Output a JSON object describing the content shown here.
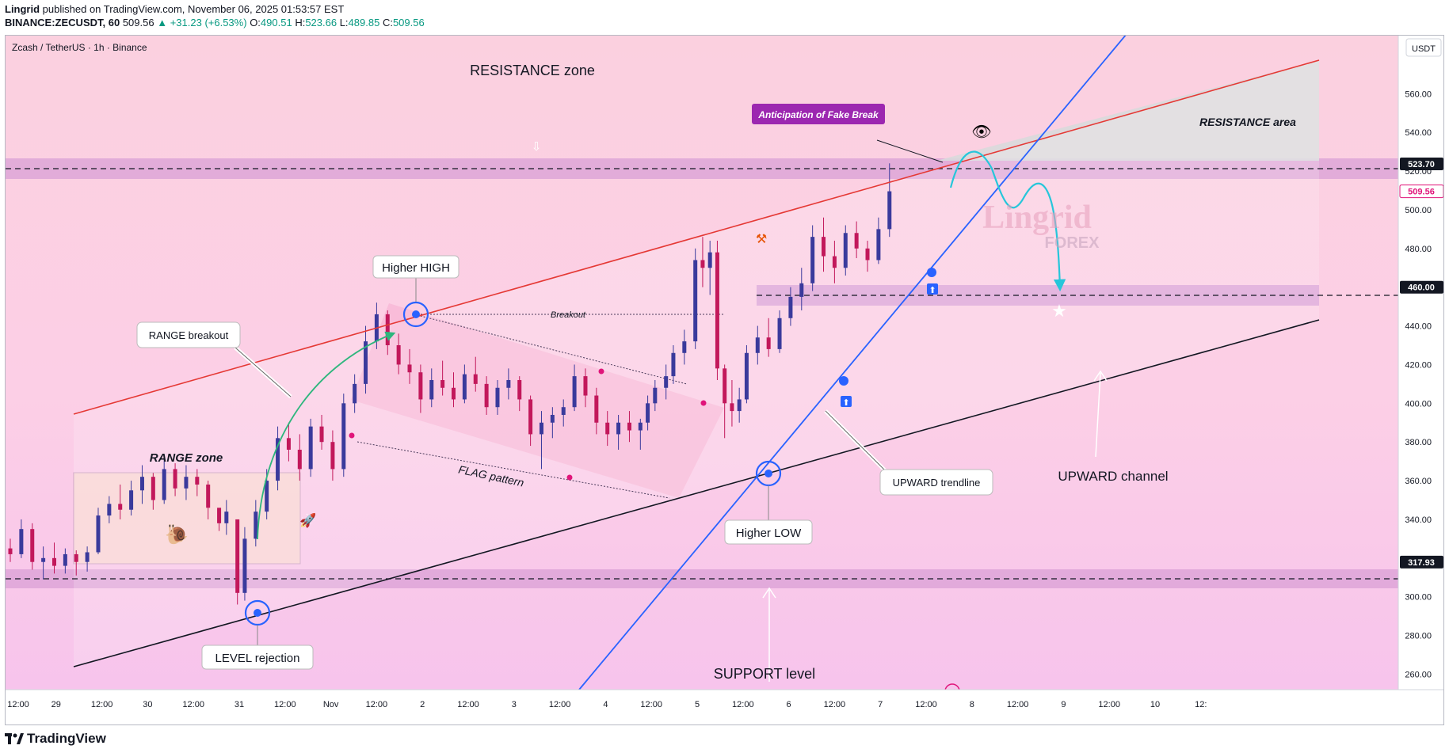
{
  "header": {
    "author": "Lingrid",
    "published_text": "published on TradingView.com, November 06, 2025 01:53:57 EST",
    "symbol": "BINANCE:ZECUSDT, 60",
    "last": "509.56",
    "change": "+31.23 (+6.53%)",
    "o_label": "O:",
    "o": "490.51",
    "h_label": "H:",
    "h": "523.66",
    "l_label": "L:",
    "l": "489.85",
    "c_label": "C:",
    "c": "509.56"
  },
  "footer": {
    "brand": "TradingView"
  },
  "colors": {
    "up": "#089981",
    "candle_body": "#3a3a9c",
    "candle_down": "#c2185b",
    "resistance_line": "#e53935",
    "trend_line": "#2962ff",
    "support_line": "#131722",
    "zone": "#d9a0d6",
    "projection": "#33d6e0"
  },
  "chart_data": {
    "type": "candlestick",
    "title": "Zcash / TetherUS · 1h · Binance",
    "currency": "USDT",
    "ylim": [
      252,
      590
    ],
    "y_ticks": [
      "560.00",
      "540.00",
      "520.00",
      "500.00",
      "480.00",
      "440.00",
      "420.00",
      "400.00",
      "380.00",
      "360.00",
      "340.00",
      "300.00",
      "280.00",
      "260.00"
    ],
    "y_tick_values": [
      560,
      540,
      520,
      500,
      480,
      440,
      420,
      400,
      380,
      360,
      340,
      300,
      280,
      260
    ],
    "price_tags": [
      {
        "label": "523.70",
        "value": 523.7,
        "style": "dark"
      },
      {
        "label": "509.56",
        "value": 509.56,
        "style": "red"
      },
      {
        "label": "460.00",
        "value": 460.0,
        "style": "dark"
      },
      {
        "label": "317.93",
        "value": 317.93,
        "style": "dark"
      }
    ],
    "x_labels": [
      "12:00",
      "29",
      "12:00",
      "30",
      "12:00",
      "31",
      "12:00",
      "Nov",
      "12:00",
      "2",
      "12:00",
      "3",
      "12:00",
      "4",
      "12:00",
      "5",
      "12:00",
      "6",
      "12:00",
      "7",
      "12:00",
      "8",
      "12:00",
      "9",
      "12:00",
      "10",
      "12:"
    ],
    "x_label_days": [
      0,
      0.5,
      1,
      1.5,
      2,
      2.5,
      3,
      3.5,
      4,
      4.5,
      5,
      5.5,
      6,
      6.5,
      7,
      7.5,
      8,
      8.5,
      9,
      9.5,
      10,
      10.5,
      11,
      11.5,
      12,
      12.5,
      13
    ],
    "ohlc_days": [
      [
        0.0,
        325,
        330,
        318,
        322
      ],
      [
        0.12,
        322,
        340,
        320,
        335
      ],
      [
        0.24,
        335,
        338,
        314,
        318
      ],
      [
        0.36,
        318,
        326,
        309,
        320
      ],
      [
        0.48,
        320,
        328,
        312,
        316
      ],
      [
        0.6,
        316,
        325,
        312,
        322
      ],
      [
        0.72,
        322,
        324,
        311,
        318
      ],
      [
        0.84,
        318,
        326,
        313,
        323
      ],
      [
        0.96,
        323,
        346,
        322,
        342
      ],
      [
        1.08,
        342,
        352,
        338,
        348
      ],
      [
        1.2,
        348,
        358,
        340,
        345
      ],
      [
        1.32,
        345,
        360,
        342,
        355
      ],
      [
        1.44,
        355,
        368,
        348,
        362
      ],
      [
        1.56,
        362,
        364,
        345,
        350
      ],
      [
        1.68,
        350,
        372,
        348,
        366
      ],
      [
        1.8,
        366,
        369,
        352,
        356
      ],
      [
        1.92,
        356,
        368,
        350,
        362
      ],
      [
        2.04,
        362,
        366,
        352,
        358
      ],
      [
        2.16,
        358,
        360,
        340,
        346
      ],
      [
        2.28,
        346,
        344,
        334,
        338
      ],
      [
        2.36,
        338,
        350,
        332,
        344
      ],
      [
        2.48,
        340,
        332,
        296,
        302
      ],
      [
        2.56,
        302,
        336,
        298,
        330
      ],
      [
        2.68,
        330,
        350,
        326,
        344
      ],
      [
        2.8,
        344,
        366,
        340,
        360
      ],
      [
        2.92,
        360,
        388,
        355,
        382
      ],
      [
        3.04,
        382,
        390,
        370,
        376
      ],
      [
        3.16,
        376,
        384,
        360,
        366
      ],
      [
        3.28,
        366,
        392,
        362,
        388
      ],
      [
        3.4,
        388,
        394,
        376,
        380
      ],
      [
        3.52,
        380,
        386,
        360,
        366
      ],
      [
        3.64,
        366,
        405,
        362,
        400
      ],
      [
        3.76,
        400,
        415,
        395,
        410
      ],
      [
        3.88,
        410,
        440,
        405,
        432
      ],
      [
        4.0,
        432,
        452,
        428,
        446
      ],
      [
        4.12,
        446,
        448,
        425,
        430
      ],
      [
        4.24,
        430,
        436,
        415,
        420
      ],
      [
        4.36,
        420,
        428,
        410,
        416
      ],
      [
        4.48,
        416,
        420,
        395,
        402
      ],
      [
        4.6,
        402,
        418,
        398,
        412
      ],
      [
        4.72,
        412,
        422,
        404,
        408
      ],
      [
        4.84,
        408,
        416,
        398,
        402
      ],
      [
        4.96,
        402,
        420,
        400,
        415
      ],
      [
        5.08,
        415,
        424,
        406,
        410
      ],
      [
        5.2,
        410,
        414,
        394,
        398
      ],
      [
        5.32,
        398,
        412,
        394,
        408
      ],
      [
        5.44,
        408,
        418,
        402,
        412
      ],
      [
        5.56,
        412,
        414,
        396,
        402
      ],
      [
        5.68,
        402,
        404,
        378,
        384
      ],
      [
        5.8,
        384,
        396,
        366,
        390
      ],
      [
        5.92,
        390,
        398,
        382,
        394
      ],
      [
        6.04,
        394,
        402,
        388,
        398
      ],
      [
        6.16,
        398,
        420,
        396,
        414
      ],
      [
        6.28,
        414,
        418,
        398,
        404
      ],
      [
        6.4,
        404,
        408,
        384,
        390
      ],
      [
        6.52,
        390,
        396,
        378,
        384
      ],
      [
        6.64,
        384,
        394,
        376,
        390
      ],
      [
        6.76,
        390,
        396,
        380,
        386
      ],
      [
        6.88,
        386,
        392,
        376,
        390
      ],
      [
        6.96,
        390,
        404,
        386,
        400
      ],
      [
        7.04,
        400,
        412,
        396,
        408
      ],
      [
        7.16,
        408,
        420,
        402,
        414
      ],
      [
        7.24,
        414,
        430,
        410,
        426
      ],
      [
        7.36,
        426,
        438,
        420,
        432
      ],
      [
        7.48,
        432,
        480,
        428,
        474
      ],
      [
        7.56,
        474,
        486,
        460,
        470
      ],
      [
        7.64,
        470,
        484,
        456,
        478
      ],
      [
        7.72,
        478,
        484,
        412,
        418
      ],
      [
        7.8,
        418,
        420,
        382,
        400
      ],
      [
        7.88,
        400,
        412,
        388,
        396
      ],
      [
        7.96,
        396,
        408,
        390,
        402
      ],
      [
        8.04,
        402,
        430,
        400,
        426
      ],
      [
        8.16,
        426,
        440,
        420,
        434
      ],
      [
        8.28,
        434,
        444,
        424,
        428
      ],
      [
        8.4,
        428,
        448,
        426,
        444
      ],
      [
        8.52,
        444,
        460,
        440,
        455
      ],
      [
        8.64,
        455,
        470,
        448,
        462
      ],
      [
        8.76,
        462,
        492,
        458,
        486
      ],
      [
        8.88,
        486,
        496,
        468,
        476
      ],
      [
        9.0,
        476,
        484,
        462,
        470
      ],
      [
        9.12,
        470,
        492,
        466,
        488
      ],
      [
        9.24,
        488,
        494,
        475,
        480
      ],
      [
        9.36,
        480,
        484,
        468,
        474
      ],
      [
        9.48,
        474,
        496,
        472,
        490
      ],
      [
        9.6,
        490,
        524,
        486,
        509.56
      ]
    ],
    "annotations": [
      "RESISTANCE zone",
      "RESISTANCE area",
      "Anticipation of Fake Break",
      "Higher HIGH",
      "RANGE breakout",
      "Breakout",
      "FLAG pattern",
      "RANGE zone",
      "LEVEL rejection",
      "Higher LOW",
      "UPWARD trendline",
      "UPWARD channel",
      "SUPPORT level"
    ],
    "watermark": {
      "top": "Lingrid",
      "bottom": "FOREX"
    }
  }
}
